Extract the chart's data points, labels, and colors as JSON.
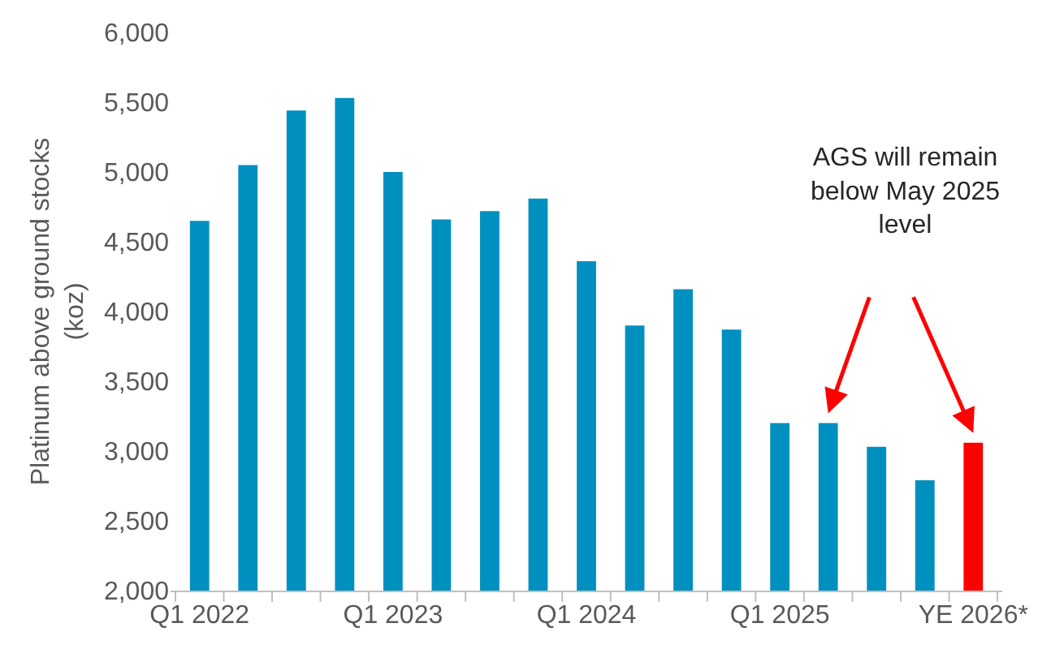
{
  "chart_data": {
    "type": "bar",
    "ylabel": "Platinum above ground stocks\n(koz)",
    "categories": [
      "Q1 2022",
      null,
      null,
      null,
      "Q1 2023",
      null,
      null,
      null,
      "Q1 2024",
      null,
      null,
      null,
      "Q1 2025",
      null,
      null,
      null,
      "YE 2026*"
    ],
    "values": [
      4650,
      5050,
      5440,
      5530,
      5000,
      4660,
      4720,
      4810,
      4360,
      3900,
      4160,
      3870,
      3200,
      3200,
      3030,
      2790,
      3060
    ],
    "colors": [
      "#0090bf",
      "#0090bf",
      "#0090bf",
      "#0090bf",
      "#0090bf",
      "#0090bf",
      "#0090bf",
      "#0090bf",
      "#0090bf",
      "#0090bf",
      "#0090bf",
      "#0090bf",
      "#0090bf",
      "#0090bf",
      "#0090bf",
      "#0090bf",
      "#ff0000"
    ],
    "ylim": [
      2000,
      6000
    ],
    "yticks": [
      {
        "value": 2000,
        "label": "2,000"
      },
      {
        "value": 2500,
        "label": "2,500"
      },
      {
        "value": 3000,
        "label": "3,000"
      },
      {
        "value": 3500,
        "label": "3,500"
      },
      {
        "value": 4000,
        "label": "4,000"
      },
      {
        "value": 4500,
        "label": "4,500"
      },
      {
        "value": 5000,
        "label": "5,000"
      },
      {
        "value": 5500,
        "label": "5,500"
      },
      {
        "value": 6000,
        "label": "6,000"
      }
    ],
    "annotations": [
      "AGS will remain\nbelow May 2025\nlevel"
    ]
  }
}
